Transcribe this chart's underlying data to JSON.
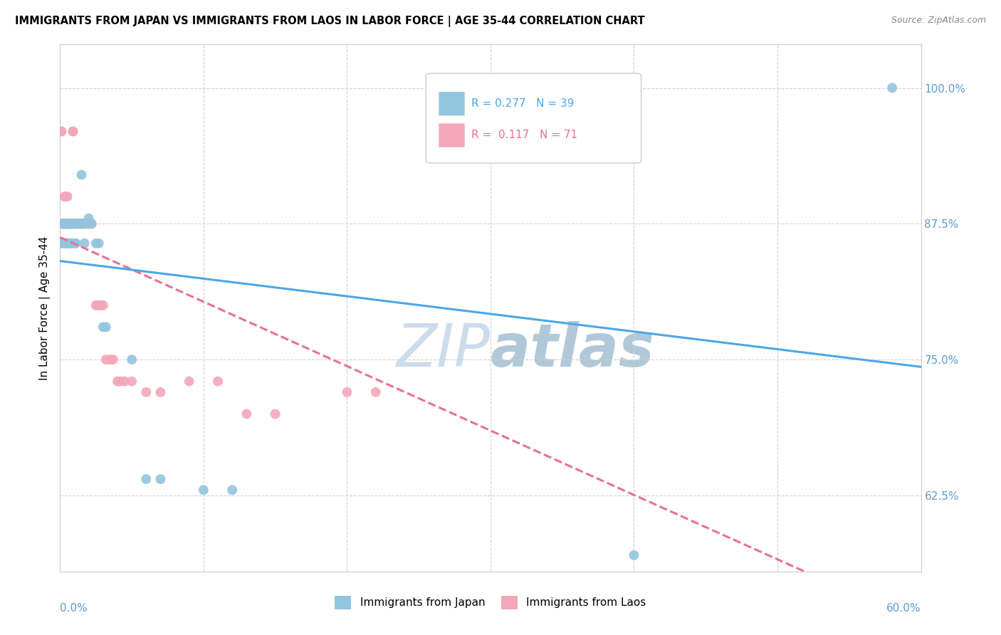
{
  "title": "IMMIGRANTS FROM JAPAN VS IMMIGRANTS FROM LAOS IN LABOR FORCE | AGE 35-44 CORRELATION CHART",
  "source": "Source: ZipAtlas.com",
  "ylabel": "In Labor Force | Age 35-44",
  "y_ticks": [
    0.625,
    0.75,
    0.875,
    1.0
  ],
  "y_tick_labels": [
    "62.5%",
    "75.0%",
    "87.5%",
    "100.0%"
  ],
  "x_min": 0.0,
  "x_max": 0.6,
  "y_min": 0.555,
  "y_max": 1.04,
  "color_japan": "#92c5de",
  "color_laos": "#f4a7b9",
  "color_japan_line": "#4da6e8",
  "color_laos_line": "#e8709a",
  "color_axis_labels": "#5b9bd5",
  "watermark_color": "#ccdcec",
  "japan_points": [
    [
      0.001,
      0.857
    ],
    [
      0.002,
      0.875
    ],
    [
      0.003,
      0.857
    ],
    [
      0.003,
      0.875
    ],
    [
      0.004,
      0.875
    ],
    [
      0.004,
      0.857
    ],
    [
      0.005,
      0.875
    ],
    [
      0.005,
      0.857
    ],
    [
      0.005,
      0.875
    ],
    [
      0.006,
      0.875
    ],
    [
      0.006,
      0.857
    ],
    [
      0.007,
      0.857
    ],
    [
      0.007,
      0.875
    ],
    [
      0.008,
      0.857
    ],
    [
      0.008,
      0.875
    ],
    [
      0.009,
      0.875
    ],
    [
      0.01,
      0.875
    ],
    [
      0.01,
      0.857
    ],
    [
      0.011,
      0.857
    ],
    [
      0.012,
      0.875
    ],
    [
      0.013,
      0.875
    ],
    [
      0.014,
      0.875
    ],
    [
      0.015,
      0.92
    ],
    [
      0.016,
      0.875
    ],
    [
      0.017,
      0.857
    ],
    [
      0.018,
      0.875
    ],
    [
      0.02,
      0.88
    ],
    [
      0.022,
      0.875
    ],
    [
      0.025,
      0.857
    ],
    [
      0.027,
      0.857
    ],
    [
      0.03,
      0.78
    ],
    [
      0.032,
      0.78
    ],
    [
      0.05,
      0.75
    ],
    [
      0.06,
      0.64
    ],
    [
      0.07,
      0.64
    ],
    [
      0.1,
      0.63
    ],
    [
      0.12,
      0.63
    ],
    [
      0.4,
      0.57
    ],
    [
      0.58,
      1.0
    ]
  ],
  "laos_points": [
    [
      0.0,
      0.857
    ],
    [
      0.0,
      0.875
    ],
    [
      0.0,
      0.875
    ],
    [
      0.0,
      0.875
    ],
    [
      0.001,
      0.96
    ],
    [
      0.001,
      0.96
    ],
    [
      0.001,
      0.875
    ],
    [
      0.002,
      0.875
    ],
    [
      0.002,
      0.875
    ],
    [
      0.002,
      0.875
    ],
    [
      0.003,
      0.875
    ],
    [
      0.003,
      0.875
    ],
    [
      0.003,
      0.9
    ],
    [
      0.004,
      0.9
    ],
    [
      0.004,
      0.875
    ],
    [
      0.004,
      0.875
    ],
    [
      0.005,
      0.9
    ],
    [
      0.005,
      0.875
    ],
    [
      0.005,
      0.875
    ],
    [
      0.005,
      0.875
    ],
    [
      0.005,
      0.857
    ],
    [
      0.005,
      0.857
    ],
    [
      0.006,
      0.875
    ],
    [
      0.006,
      0.875
    ],
    [
      0.006,
      0.875
    ],
    [
      0.007,
      0.875
    ],
    [
      0.007,
      0.875
    ],
    [
      0.007,
      0.875
    ],
    [
      0.008,
      0.875
    ],
    [
      0.008,
      0.875
    ],
    [
      0.009,
      0.96
    ],
    [
      0.009,
      0.96
    ],
    [
      0.01,
      0.875
    ],
    [
      0.01,
      0.875
    ],
    [
      0.01,
      0.875
    ],
    [
      0.011,
      0.875
    ],
    [
      0.012,
      0.875
    ],
    [
      0.013,
      0.875
    ],
    [
      0.014,
      0.875
    ],
    [
      0.015,
      0.875
    ],
    [
      0.015,
      0.875
    ],
    [
      0.016,
      0.875
    ],
    [
      0.016,
      0.875
    ],
    [
      0.017,
      0.875
    ],
    [
      0.018,
      0.875
    ],
    [
      0.02,
      0.875
    ],
    [
      0.02,
      0.875
    ],
    [
      0.021,
      0.875
    ],
    [
      0.022,
      0.875
    ],
    [
      0.025,
      0.8
    ],
    [
      0.026,
      0.8
    ],
    [
      0.028,
      0.8
    ],
    [
      0.028,
      0.8
    ],
    [
      0.03,
      0.8
    ],
    [
      0.032,
      0.75
    ],
    [
      0.035,
      0.75
    ],
    [
      0.037,
      0.75
    ],
    [
      0.04,
      0.73
    ],
    [
      0.042,
      0.73
    ],
    [
      0.045,
      0.73
    ],
    [
      0.05,
      0.73
    ],
    [
      0.06,
      0.72
    ],
    [
      0.07,
      0.72
    ],
    [
      0.09,
      0.73
    ],
    [
      0.11,
      0.73
    ],
    [
      0.13,
      0.7
    ],
    [
      0.15,
      0.7
    ],
    [
      0.2,
      0.72
    ],
    [
      0.22,
      0.72
    ],
    [
      0.3,
      0.96
    ]
  ]
}
